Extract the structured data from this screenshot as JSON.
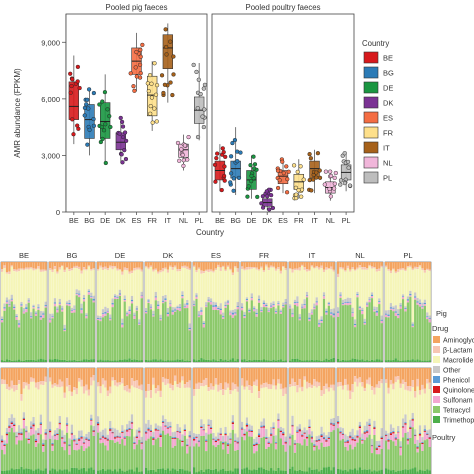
{
  "chart_data": [
    {
      "type": "box",
      "panels": [
        {
          "title": "Pooled pig faeces",
          "boxes": [
            {
              "country": "BE",
              "q1": 4900,
              "median": 5600,
              "q3": 6900,
              "min": 3600,
              "max": 8300
            },
            {
              "country": "BG",
              "q1": 3900,
              "median": 4900,
              "q3": 5700,
              "min": 3000,
              "max": 6600
            },
            {
              "country": "DE",
              "q1": 3900,
              "median": 4800,
              "q3": 5800,
              "min": 2500,
              "max": 7300
            },
            {
              "country": "DK",
              "q1": 3300,
              "median": 3700,
              "q3": 4200,
              "min": 2600,
              "max": 5000
            },
            {
              "country": "ES",
              "q1": 7300,
              "median": 8000,
              "q3": 8700,
              "min": 6400,
              "max": 9500
            },
            {
              "country": "FR",
              "q1": 5100,
              "median": 6200,
              "q3": 7200,
              "min": 4300,
              "max": 8000
            },
            {
              "country": "IT",
              "q1": 7600,
              "median": 8700,
              "q3": 9400,
              "min": 5800,
              "max": 10000
            },
            {
              "country": "NL",
              "q1": 2900,
              "median": 3300,
              "q3": 3600,
              "min": 2200,
              "max": 4100
            },
            {
              "country": "PL",
              "q1": 4700,
              "median": 5400,
              "q3": 6100,
              "min": 3800,
              "max": 7900
            }
          ]
        },
        {
          "title": "Pooled poultry faeces",
          "boxes": [
            {
              "country": "BE",
              "q1": 1700,
              "median": 2200,
              "q3": 2700,
              "min": 1100,
              "max": 3600
            },
            {
              "country": "BG",
              "q1": 1800,
              "median": 2300,
              "q3": 2700,
              "min": 900,
              "max": 4500
            },
            {
              "country": "DE",
              "q1": 1200,
              "median": 1700,
              "q3": 2200,
              "min": 700,
              "max": 3000
            },
            {
              "country": "DK",
              "q1": 300,
              "median": 500,
              "q3": 700,
              "min": 100,
              "max": 1200
            },
            {
              "country": "ES",
              "q1": 1500,
              "median": 1900,
              "q3": 2200,
              "min": 1000,
              "max": 2800
            },
            {
              "country": "FR",
              "q1": 1200,
              "median": 1600,
              "q3": 2000,
              "min": 700,
              "max": 2800
            },
            {
              "country": "IT",
              "q1": 1800,
              "median": 2300,
              "q3": 2700,
              "min": 1000,
              "max": 3300
            },
            {
              "country": "NL",
              "q1": 1000,
              "median": 1300,
              "q3": 1600,
              "min": 600,
              "max": 2200
            },
            {
              "country": "PL",
              "q1": 1700,
              "median": 2100,
              "q3": 2500,
              "min": 1100,
              "max": 3200
            }
          ]
        }
      ],
      "ylabel": "AMR abundance (FPKM)",
      "xlabel": "Country",
      "ylim": [
        0,
        10500
      ],
      "yticks": [
        0,
        3000,
        6000,
        9000
      ],
      "ytick_labels": [
        "0",
        "3,000",
        "6,000",
        "9,000"
      ],
      "categories": [
        "BE",
        "BG",
        "DE",
        "DK",
        "ES",
        "FR",
        "IT",
        "NL",
        "PL"
      ],
      "legend": {
        "title": "Country",
        "position": "right",
        "entries": [
          "BE",
          "BG",
          "DE",
          "DK",
          "ES",
          "FR",
          "IT",
          "NL",
          "PL"
        ]
      },
      "country_colors": {
        "BE": "#d7191c",
        "BG": "#2c7bb6",
        "DE": "#1a9641",
        "DK": "#7b3294",
        "ES": "#f46d43",
        "FR": "#fee08b",
        "IT": "#a6611a",
        "NL": "#f1b6da",
        "PL": "#bdbdbd"
      }
    },
    {
      "type": "stacked_bar",
      "countries": [
        "BE",
        "BG",
        "DE",
        "DK",
        "ES",
        "FR",
        "IT",
        "NL",
        "PL"
      ],
      "rows": [
        "Pig",
        "Poultry"
      ],
      "ylim": [
        0,
        1
      ],
      "legend": {
        "title": "Drug",
        "entries": [
          {
            "name": "Aminoglyc",
            "color": "#f4a460"
          },
          {
            "name": "β-Lactam",
            "color": "#f7c6b3"
          },
          {
            "name": "Macrolide",
            "color": "#f5f5b8"
          },
          {
            "name": "Other",
            "color": "#c8c8c8"
          },
          {
            "name": "Phenicol",
            "color": "#5b9bd5"
          },
          {
            "name": "Quinolone",
            "color": "#d7191c"
          },
          {
            "name": "Sulfonam",
            "color": "#f3a7d0"
          },
          {
            "name": "Tetracycl",
            "color": "#8cc96b"
          },
          {
            "name": "Trimethop",
            "color": "#4daf4a"
          }
        ]
      },
      "pig_mean_fractions": {
        "Aminoglyc": 0.06,
        "β-Lactam": 0.02,
        "Macrolide": 0.36,
        "Other": 0.03,
        "Phenicol": 0.01,
        "Quinolone": 0.0,
        "Sulfonam": 0.02,
        "Tetracycl": 0.48,
        "Trimethop": 0.02
      },
      "poultry_mean_fractions": {
        "Aminoglyc": 0.14,
        "β-Lactam": 0.05,
        "Macrolide": 0.38,
        "Other": 0.05,
        "Phenicol": 0.01,
        "Quinolone": 0.01,
        "Sulfonam": 0.06,
        "Tetracycl": 0.26,
        "Trimethop": 0.04
      }
    }
  ]
}
